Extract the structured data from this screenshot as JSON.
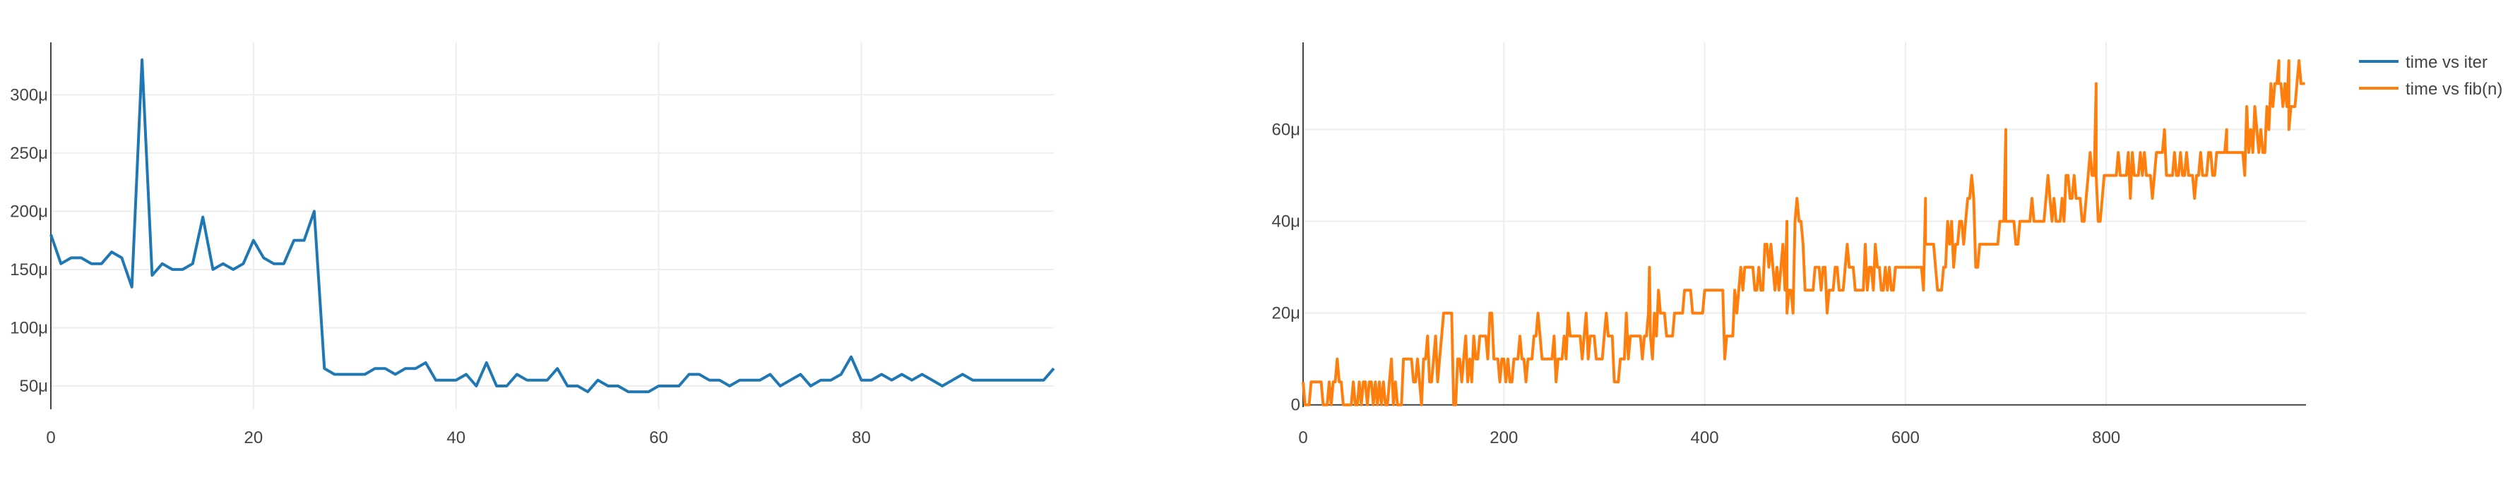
{
  "chart_data": [
    {
      "type": "line",
      "title": "",
      "xlabel": "",
      "ylabel": "",
      "xlim": [
        0,
        99
      ],
      "ylim": [
        30,
        345
      ],
      "x_ticks": [
        0,
        20,
        40,
        60,
        80
      ],
      "y_ticks": [
        50,
        100,
        150,
        200,
        250,
        300
      ],
      "x_tick_labels": [
        "0",
        "20",
        "40",
        "60",
        "80"
      ],
      "y_tick_labels": [
        "50μ",
        "100μ",
        "150μ",
        "200μ",
        "250μ",
        "300μ"
      ],
      "grid": true,
      "series": [
        {
          "name": "time vs iter",
          "color": "#1f77b4",
          "x": [
            0,
            1,
            2,
            3,
            4,
            5,
            6,
            7,
            8,
            9,
            10,
            11,
            12,
            13,
            14,
            15,
            16,
            17,
            18,
            19,
            20,
            21,
            22,
            23,
            24,
            25,
            26,
            27,
            28,
            29,
            30,
            31,
            32,
            33,
            34,
            35,
            36,
            37,
            38,
            39,
            40,
            41,
            42,
            43,
            44,
            45,
            46,
            47,
            48,
            49,
            50,
            51,
            52,
            53,
            54,
            55,
            56,
            57,
            58,
            59,
            60,
            61,
            62,
            63,
            64,
            65,
            66,
            67,
            68,
            69,
            70,
            71,
            72,
            73,
            74,
            75,
            76,
            77,
            78,
            79,
            80,
            81,
            82,
            83,
            84,
            85,
            86,
            87,
            88,
            89,
            90,
            91,
            92,
            93,
            94,
            95,
            96,
            97,
            98,
            99
          ],
          "y": [
            180,
            155,
            160,
            160,
            155,
            155,
            165,
            160,
            135,
            330,
            145,
            155,
            150,
            150,
            155,
            195,
            150,
            155,
            150,
            155,
            175,
            160,
            155,
            155,
            175,
            175,
            200,
            65,
            60,
            60,
            60,
            60,
            65,
            65,
            60,
            65,
            65,
            70,
            55,
            55,
            55,
            60,
            50,
            70,
            50,
            50,
            60,
            55,
            55,
            55,
            65,
            50,
            50,
            45,
            55,
            50,
            50,
            45,
            45,
            45,
            50,
            50,
            50,
            60,
            60,
            55,
            55,
            50,
            55,
            55,
            55,
            60,
            50,
            55,
            60,
            50,
            55,
            55,
            60,
            75,
            55,
            55,
            60,
            55,
            60,
            55,
            60,
            55,
            50,
            55,
            60,
            55,
            55,
            55,
            55,
            55,
            55,
            55,
            55,
            65
          ]
        }
      ]
    },
    {
      "type": "line",
      "title": "",
      "xlabel": "",
      "ylabel": "",
      "xlim": [
        0,
        999
      ],
      "ylim": [
        -0.5,
        79
      ],
      "x_ticks": [
        0,
        200,
        400,
        600,
        800
      ],
      "y_ticks": [
        0,
        20,
        40,
        60
      ],
      "x_tick_labels": [
        "0",
        "200",
        "400",
        "600",
        "800"
      ],
      "y_tick_labels": [
        "0",
        "20μ",
        "40μ",
        "60μ"
      ],
      "grid": true,
      "series": [
        {
          "name": "time vs fib(n)",
          "color": "#ff7f0e",
          "x_start": 0,
          "x_step": 10,
          "y": [
            0,
            5,
            0,
            5,
            0,
            0,
            5,
            0,
            5,
            0,
            10,
            5,
            10,
            10,
            20,
            5,
            10,
            10,
            15,
            10,
            5,
            10,
            10,
            15,
            10,
            10,
            15,
            15,
            15,
            10,
            15,
            10,
            15,
            15,
            15,
            20,
            20,
            20,
            25,
            20,
            25,
            25,
            15,
            25,
            30,
            25,
            30,
            30,
            25,
            40,
            25,
            30,
            25,
            25,
            30,
            25,
            30,
            30,
            30,
            30,
            30,
            30,
            35,
            30,
            35,
            35,
            45,
            35,
            35,
            35,
            40,
            40,
            40,
            40,
            45,
            40,
            50,
            45,
            50,
            45,
            50,
            50,
            50,
            50,
            50,
            55,
            50,
            50,
            50,
            50,
            55,
            55,
            55,
            55,
            60,
            55,
            65,
            70,
            65,
            70
          ],
          "spikes": [
            {
              "x": 140,
              "y": 20
            },
            {
              "x": 345,
              "y": 30
            },
            {
              "x": 482,
              "y": 40
            },
            {
              "x": 620,
              "y": 45
            },
            {
              "x": 700,
              "y": 60
            },
            {
              "x": 742,
              "y": 50
            },
            {
              "x": 790,
              "y": 70
            },
            {
              "x": 920,
              "y": 60
            },
            {
              "x": 972,
              "y": 75
            },
            {
              "x": 982,
              "y": 75
            },
            {
              "x": 995,
              "y": 70
            }
          ]
        }
      ]
    }
  ],
  "legend": {
    "placement": "top-right",
    "items": [
      {
        "label": "time vs iter",
        "color": "#1f77b4"
      },
      {
        "label": "time vs fib(n)",
        "color": "#ff7f0e"
      }
    ]
  }
}
